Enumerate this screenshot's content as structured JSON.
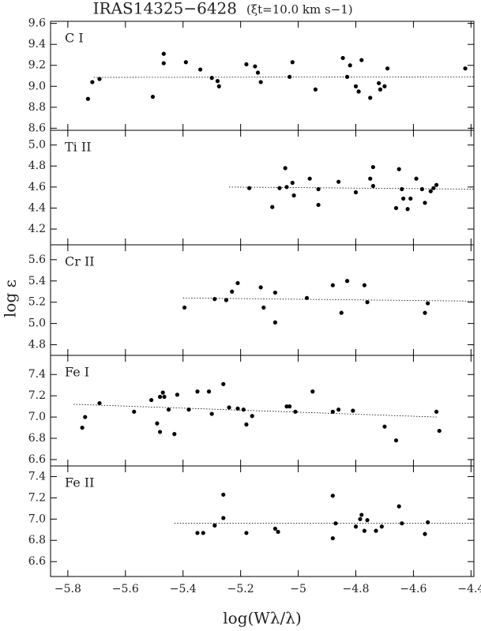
{
  "chart_data": [
    {
      "type": "scatter",
      "title": "IRAS14325−6428",
      "subtitle": "(ξt=10.0 km s−1)",
      "label": "C I",
      "color": "#000000",
      "xlim": [
        -5.86,
        -4.39
      ],
      "xticks": [
        -5.8,
        -5.6,
        -5.4,
        -5.2,
        -5.0,
        -4.8,
        -4.6,
        -4.4
      ],
      "ylim": [
        8.58,
        9.62
      ],
      "yticks": [
        8.6,
        8.8,
        {
          "value": 9,
          "label": "9.0"
        },
        9.2,
        9.4,
        9.6
      ],
      "x": [
        -5.73,
        -5.715,
        -5.69,
        -5.505,
        -5.467,
        -5.467,
        -5.39,
        -5.34,
        -5.3,
        -5.28,
        -5.275,
        -5.18,
        -5.15,
        -5.14,
        -5.13,
        -5.03,
        -5.02,
        -4.94,
        -4.845,
        -4.83,
        -4.82,
        -4.8,
        -4.79,
        -4.78,
        -4.75,
        -4.72,
        -4.715,
        -4.7,
        -4.69,
        -4.42
      ],
      "values": [
        8.88,
        9.04,
        9.07,
        8.9,
        9.31,
        9.22,
        9.23,
        9.16,
        9.08,
        9.05,
        9.0,
        9.21,
        9.19,
        9.13,
        9.04,
        9.09,
        9.23,
        8.97,
        9.27,
        9.09,
        9.2,
        9.0,
        8.95,
        9.25,
        8.89,
        9.03,
        8.97,
        9.0,
        9.17,
        9.17
      ],
      "fit": {
        "x": [
          -5.71,
          -4.39
        ],
        "values": [
          9.085,
          9.09
        ]
      }
    },
    {
      "type": "scatter",
      "label": "Ti II",
      "color": "#000000",
      "xlim": [
        -5.86,
        -4.39
      ],
      "xticks": [
        -5.8,
        -5.6,
        -5.4,
        -5.2,
        -5.0,
        -4.8,
        -4.6,
        -4.4
      ],
      "ylim": [
        4.05,
        5.14
      ],
      "yticks": [
        4.2,
        4.4,
        4.6,
        4.8,
        {
          "value": 5,
          "label": "5.0"
        }
      ],
      "x": [
        -5.17,
        -5.09,
        -5.065,
        -5.045,
        -5.04,
        -5.02,
        -5.015,
        -4.96,
        -4.93,
        -4.93,
        -4.86,
        -4.8,
        -4.75,
        -4.74,
        -4.74,
        -4.66,
        -4.65,
        -4.64,
        -4.635,
        -4.62,
        -4.61,
        -4.59,
        -4.57,
        -4.56,
        -4.54,
        -4.53,
        -4.52
      ],
      "values": [
        4.59,
        4.41,
        4.59,
        4.78,
        4.6,
        4.64,
        4.52,
        4.68,
        4.58,
        4.43,
        4.65,
        4.55,
        4.68,
        4.79,
        4.61,
        4.4,
        4.77,
        4.58,
        4.49,
        4.39,
        4.49,
        4.68,
        4.58,
        4.45,
        4.56,
        4.59,
        4.62
      ],
      "fit": {
        "x": [
          -5.24,
          -4.39
        ],
        "values": [
          4.6,
          4.58
        ]
      }
    },
    {
      "type": "scatter",
      "label": "Cr II",
      "ylabel": "log ε",
      "color": "#000000",
      "xlim": [
        -5.86,
        -4.39
      ],
      "xticks": [
        -5.8,
        -5.6,
        -5.4,
        -5.2,
        -5.0,
        -4.8,
        -4.6,
        -4.4
      ],
      "ylim": [
        4.7,
        5.74
      ],
      "yticks": [
        4.8,
        {
          "value": 5,
          "label": "5.0"
        },
        5.2,
        5.4,
        5.6
      ],
      "x": [
        -5.395,
        -5.29,
        -5.25,
        -5.23,
        -5.21,
        -5.13,
        -5.12,
        -5.08,
        -5.08,
        -4.97,
        -4.88,
        -4.85,
        -4.83,
        -4.77,
        -4.76,
        -4.56,
        -4.55
      ],
      "values": [
        5.15,
        5.23,
        5.22,
        5.3,
        5.38,
        5.34,
        5.15,
        5.29,
        5.01,
        5.24,
        5.36,
        5.1,
        5.4,
        5.36,
        5.2,
        5.1,
        5.19
      ],
      "fit": {
        "x": [
          -5.4,
          -4.39
        ],
        "values": [
          5.24,
          5.21
        ]
      }
    },
    {
      "type": "scatter",
      "label": "Fe I",
      "color": "#000000",
      "xlim": [
        -5.86,
        -4.39
      ],
      "xticks": [
        -5.8,
        -5.6,
        -5.4,
        -5.2,
        -5.0,
        -4.8,
        -4.6,
        -4.4
      ],
      "ylim": [
        6.54,
        7.58
      ],
      "yticks": [
        6.6,
        6.8,
        {
          "value": 7,
          "label": "7.0"
        },
        7.2,
        7.4
      ],
      "x": [
        -5.75,
        -5.74,
        -5.69,
        -5.57,
        -5.51,
        -5.49,
        -5.48,
        -5.48,
        -5.47,
        -5.465,
        -5.45,
        -5.43,
        -5.42,
        -5.38,
        -5.35,
        -5.31,
        -5.3,
        -5.26,
        -5.24,
        -5.21,
        -5.19,
        -5.18,
        -5.16,
        -5.04,
        -5.03,
        -5.01,
        -4.95,
        -4.88,
        -4.86,
        -4.81,
        -4.7,
        -4.66,
        -4.52,
        -4.51
      ],
      "values": [
        6.9,
        7.0,
        7.13,
        7.05,
        7.16,
        6.94,
        7.19,
        6.86,
        7.23,
        7.19,
        7.07,
        6.84,
        7.21,
        7.07,
        7.24,
        7.24,
        7.03,
        7.31,
        7.09,
        7.08,
        7.07,
        6.93,
        7.01,
        7.1,
        7.1,
        7.05,
        7.24,
        7.05,
        7.07,
        7.06,
        6.91,
        6.78,
        7.05,
        6.87
      ],
      "fit": {
        "x": [
          -5.78,
          -4.52
        ],
        "values": [
          7.12,
          7.0
        ]
      }
    },
    {
      "type": "scatter",
      "label": "Fe II",
      "xlabel": "log(Wλ/λ)",
      "color": "#000000",
      "xlim": [
        -5.86,
        -4.39
      ],
      "xticks": [
        {
          "value": -5.8,
          "label": "−5.8"
        },
        {
          "value": -5.6,
          "label": "−5.6"
        },
        {
          "value": -5.4,
          "label": "−5.4"
        },
        {
          "value": -5.2,
          "label": "−5.2"
        },
        {
          "value": -5,
          "label": "−5"
        },
        {
          "value": -4.8,
          "label": "−4.8"
        },
        {
          "value": -4.6,
          "label": "−4.6"
        },
        {
          "value": -4.4,
          "label": "−4.4"
        }
      ],
      "ylim": [
        6.46,
        7.5
      ],
      "yticks": [
        6.6,
        6.8,
        {
          "value": 7,
          "label": "7.0"
        },
        7.2,
        7.4
      ],
      "x": [
        -5.35,
        -5.33,
        -5.29,
        -5.26,
        -5.26,
        -5.18,
        -5.08,
        -5.07,
        -4.88,
        -4.88,
        -4.87,
        -4.8,
        -4.785,
        -4.78,
        -4.77,
        -4.76,
        -4.73,
        -4.71,
        -4.65,
        -4.64,
        -4.56,
        -4.55
      ],
      "values": [
        6.87,
        6.87,
        6.94,
        7.01,
        7.23,
        6.87,
        6.91,
        6.88,
        7.22,
        6.82,
        6.96,
        6.93,
        7.0,
        7.04,
        6.89,
        6.99,
        6.89,
        6.93,
        7.12,
        6.96,
        6.86,
        6.97
      ],
      "fit": {
        "x": [
          -5.43,
          -4.39
        ],
        "values": [
          6.96,
          6.96
        ]
      }
    }
  ]
}
